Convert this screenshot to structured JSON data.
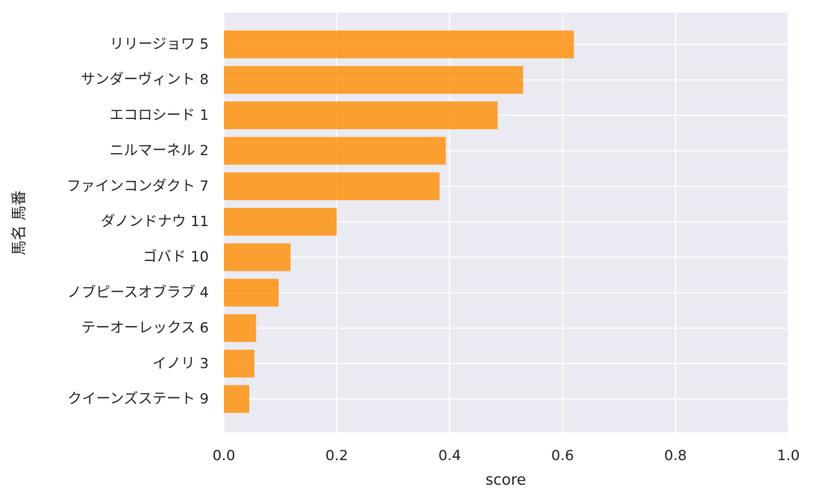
{
  "chart_data": {
    "type": "bar",
    "orientation": "horizontal",
    "categories": [
      "リリージョワ 5",
      "サンダーヴィント 8",
      "エコロシード 1",
      "ニルマーネル 2",
      "ファインコンダクト 7",
      "ダノンドナウ 11",
      "ゴバド 10",
      "ノブピースオブラブ 4",
      "テーオーレックス 6",
      "イノリ 3",
      "クイーンズステート 9"
    ],
    "values": [
      0.62,
      0.53,
      0.485,
      0.393,
      0.382,
      0.2,
      0.118,
      0.097,
      0.057,
      0.054,
      0.045
    ],
    "xlabel": "score",
    "ylabel": "馬名 馬番",
    "xlim": [
      0,
      1.0
    ],
    "xticks": [
      "0.0",
      "0.2",
      "0.4",
      "0.6",
      "0.8",
      "1.0"
    ],
    "grid": true,
    "bar_color": "#ff8c00",
    "background_color": "#eaeaf2"
  }
}
